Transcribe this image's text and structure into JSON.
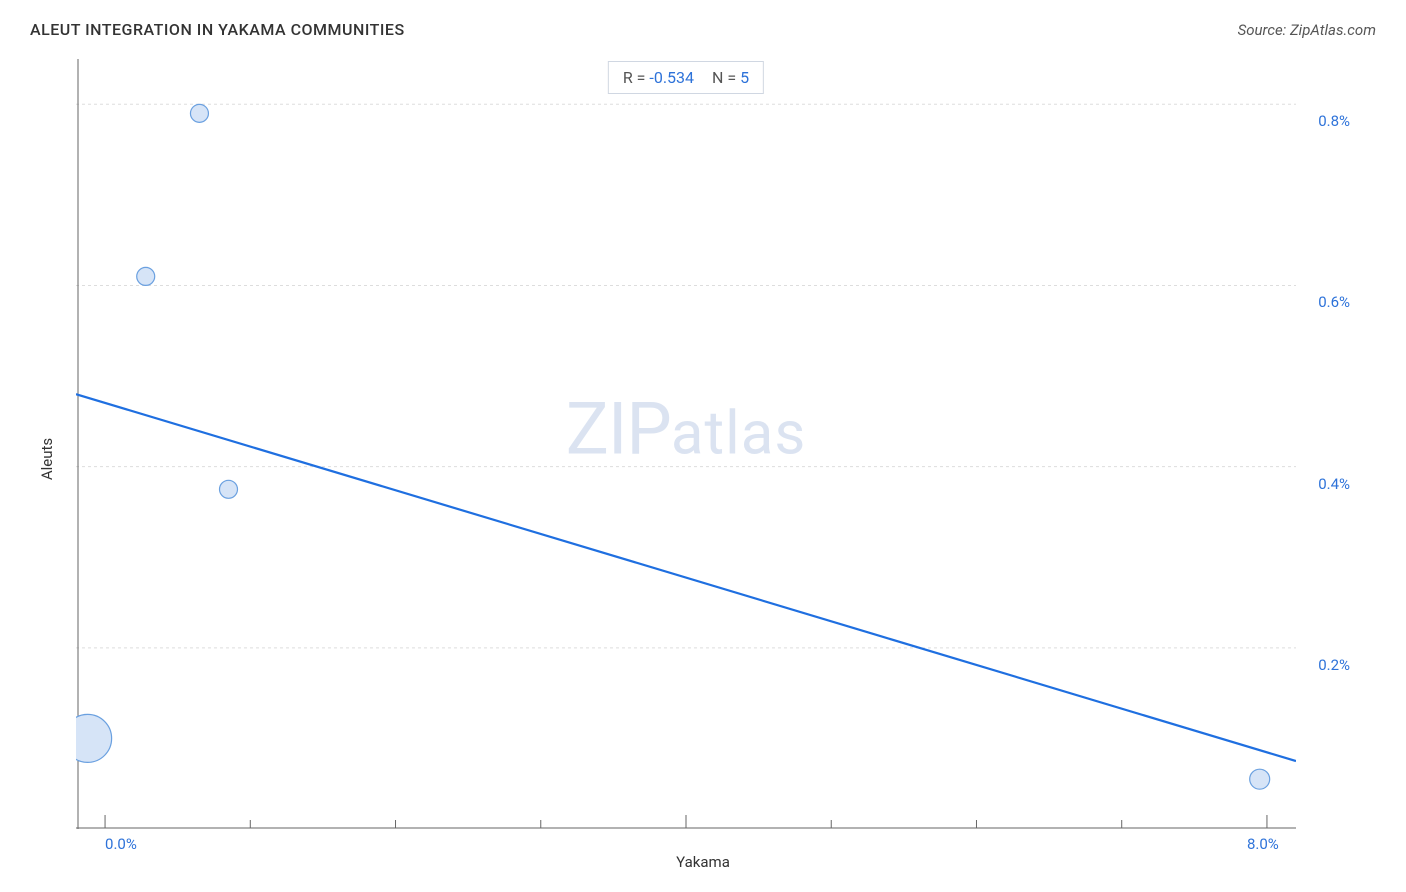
{
  "title": "ALEUT INTEGRATION IN YAKAMA COMMUNITIES",
  "source": "Source: ZipAtlas.com",
  "watermark_big": "ZIP",
  "watermark_small": "atlas",
  "stats": {
    "r_label": "R = ",
    "r_value": "-0.534",
    "n_label": "N = ",
    "n_value": "5"
  },
  "chart": {
    "type": "scatter",
    "xlabel": "Yakama",
    "ylabel": "Aleuts",
    "xlim": [
      -0.2,
      8.2
    ],
    "ylim": [
      0.0,
      0.85
    ],
    "xticks_major": [
      0.0,
      4.0,
      8.0
    ],
    "xticks_minor": [
      1.0,
      2.0,
      3.0,
      5.0,
      6.0,
      7.0
    ],
    "xtick_labels": {
      "0.0": "0.0%",
      "8.0": "8.0%"
    },
    "yticks": [
      0.2,
      0.4,
      0.6,
      0.8
    ],
    "ytick_labels": {
      "0.2": "0.2%",
      "0.4": "0.4%",
      "0.6": "0.6%",
      "0.8": "0.8%"
    },
    "grid_color": "#dddddd",
    "axis_color": "#666666",
    "background_color": "#ffffff",
    "tick_label_color": "#2d72d9",
    "axis_label_color": "#333333",
    "title_color": "#333333",
    "title_fontsize": 16,
    "label_fontsize": 15,
    "tick_fontsize": 15,
    "points": [
      {
        "x": 0.65,
        "y": 0.79,
        "r": 9
      },
      {
        "x": 0.28,
        "y": 0.61,
        "r": 9
      },
      {
        "x": 0.85,
        "y": 0.375,
        "r": 9
      },
      {
        "x": -0.12,
        "y": 0.1,
        "r": 24
      },
      {
        "x": 7.95,
        "y": 0.055,
        "r": 10
      }
    ],
    "point_fill": "#d6e4f7",
    "point_stroke": "#6aa0e0",
    "point_stroke_width": 1.2,
    "trend_line": {
      "x1": -0.2,
      "y1": 0.48,
      "x2": 8.2,
      "y2": 0.075
    },
    "line_color": "#1f6fe0",
    "line_width": 2.2
  }
}
